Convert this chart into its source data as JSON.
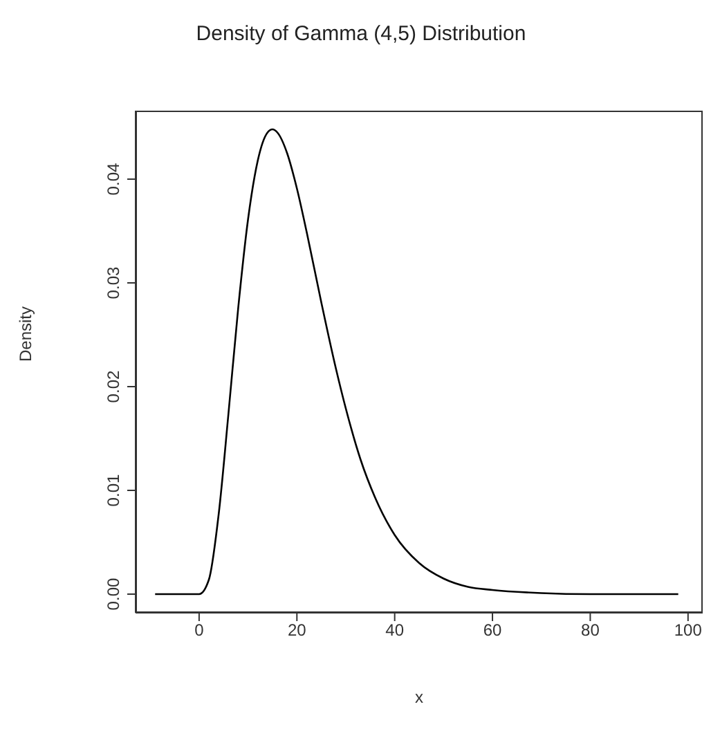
{
  "chart_data": {
    "type": "line",
    "title": "Density of Gamma (4,5) Distribution",
    "xlabel": "x",
    "ylabel": "Density",
    "x": [
      -9,
      -5,
      0,
      2,
      4,
      6,
      8,
      10,
      12,
      14,
      15,
      16,
      18,
      20,
      22,
      25,
      28,
      30,
      33,
      36,
      40,
      45,
      50,
      55,
      60,
      70,
      80,
      98
    ],
    "series": [
      {
        "color": "#000000",
        "values": [
          0,
          0,
          0,
          0.0014,
          0.0077,
          0.0174,
          0.0276,
          0.0361,
          0.0418,
          0.0445,
          0.0448,
          0.0445,
          0.0425,
          0.0391,
          0.0349,
          0.0281,
          0.0217,
          0.0179,
          0.013,
          0.0093,
          0.0057,
          0.003,
          0.0015,
          0.0007,
          0.0004,
          0.0001,
          0,
          0
        ]
      }
    ],
    "xlim": [
      -13,
      103
    ],
    "xticks": [
      0,
      20,
      40,
      60,
      80,
      100
    ],
    "ylim": [
      -0.0018,
      0.0466
    ],
    "yticks": [
      {
        "value": 0,
        "label": "0.00"
      },
      {
        "value": 0.01,
        "label": "0.01"
      },
      {
        "value": 0.02,
        "label": "0.02"
      },
      {
        "value": 0.03,
        "label": "0.03"
      },
      {
        "value": 0.04,
        "label": "0.04"
      }
    ],
    "grid": false,
    "legend": false,
    "marker": "none",
    "line_style": "solid"
  }
}
